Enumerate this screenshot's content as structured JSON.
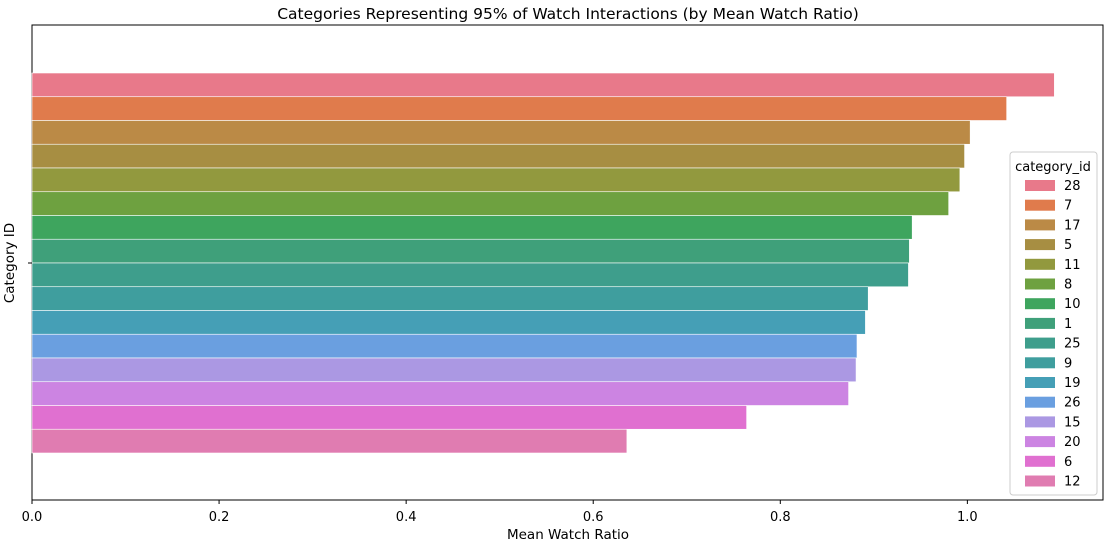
{
  "chart_data": {
    "type": "bar",
    "orientation": "horizontal",
    "title": "Categories Representing 95% of Watch Interactions (by Mean Watch Ratio)",
    "xlabel": "Mean Watch Ratio",
    "ylabel": "Category ID",
    "xlim": [
      0.0,
      1.145
    ],
    "xticks": [
      "0.0",
      "0.2",
      "0.4",
      "0.6",
      "0.8",
      "1.0"
    ],
    "grid": false,
    "legend": {
      "title": "category_id",
      "placement": "right"
    },
    "series": [
      {
        "name": "28",
        "value": 1.093,
        "color": "#e8798a"
      },
      {
        "name": "7",
        "value": 1.042,
        "color": "#e07b4c"
      },
      {
        "name": "17",
        "value": 1.003,
        "color": "#bb8a46"
      },
      {
        "name": "5",
        "value": 0.997,
        "color": "#a78e42"
      },
      {
        "name": "11",
        "value": 0.992,
        "color": "#92993e"
      },
      {
        "name": "8",
        "value": 0.98,
        "color": "#6ea140"
      },
      {
        "name": "10",
        "value": 0.941,
        "color": "#3ea55e"
      },
      {
        "name": "1",
        "value": 0.938,
        "color": "#3fa07a"
      },
      {
        "name": "25",
        "value": 0.937,
        "color": "#3e9e8c"
      },
      {
        "name": "9",
        "value": 0.894,
        "color": "#3f9e9e"
      },
      {
        "name": "19",
        "value": 0.891,
        "color": "#459fb6"
      },
      {
        "name": "26",
        "value": 0.882,
        "color": "#6a9fe0"
      },
      {
        "name": "15",
        "value": 0.881,
        "color": "#ab98e3"
      },
      {
        "name": "20",
        "value": 0.873,
        "color": "#cc84e2"
      },
      {
        "name": "6",
        "value": 0.764,
        "color": "#e070d0"
      },
      {
        "name": "12",
        "value": 0.636,
        "color": "#e07cb1"
      }
    ]
  }
}
